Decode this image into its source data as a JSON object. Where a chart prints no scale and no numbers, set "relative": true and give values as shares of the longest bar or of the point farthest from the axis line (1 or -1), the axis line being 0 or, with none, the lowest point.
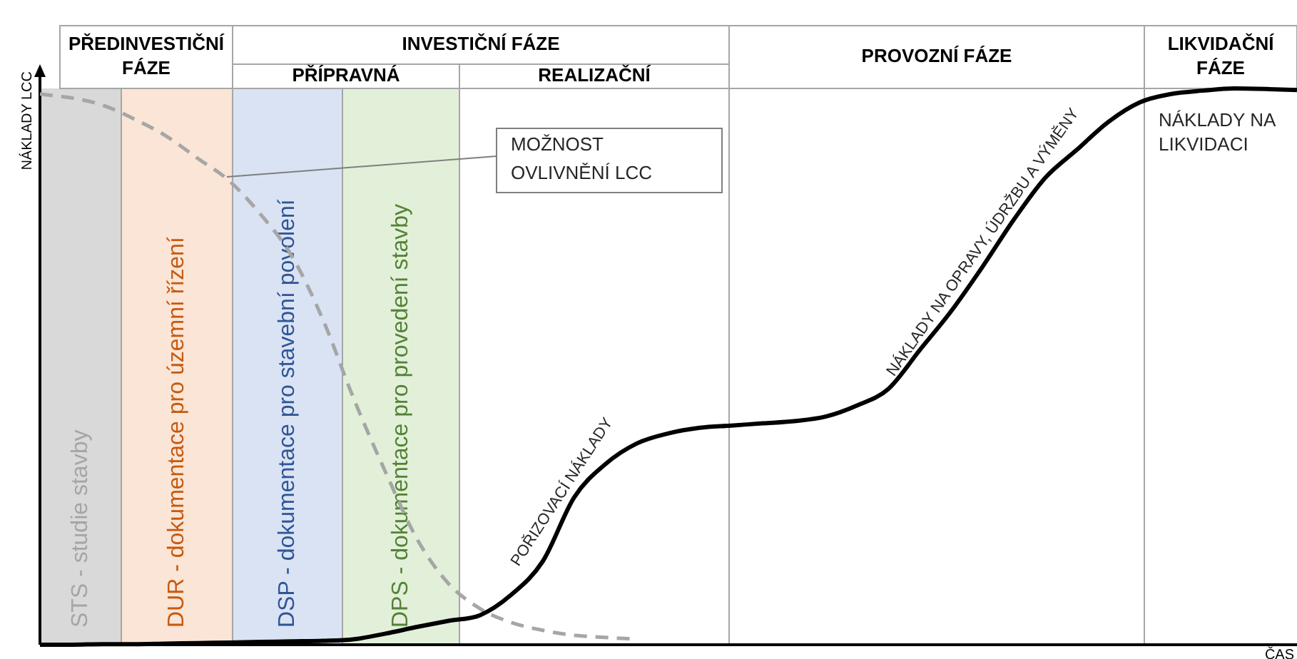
{
  "chart_data": {
    "type": "line",
    "relative": true,
    "xlabel": "ČAS",
    "ylabel": "NÁKLADY LCC",
    "tick_labels": false,
    "grid": "x",
    "categories": [
      null,
      null,
      null,
      null,
      null,
      null,
      null,
      null,
      null,
      null,
      null,
      null,
      null,
      null,
      null,
      null,
      null,
      null,
      null,
      null,
      null,
      null,
      null,
      null,
      null,
      null,
      null,
      null,
      null,
      null,
      null,
      null,
      null,
      null,
      null,
      null,
      null,
      null,
      null,
      null,
      null
    ],
    "series": [
      {
        "color": "#000000",
        "line_style": "solid",
        "values": [
          0,
          0,
          0.001,
          0.001,
          0.002,
          0.003,
          0.004,
          0.005,
          0.006,
          0.007,
          0.01,
          0.02,
          0.032,
          0.043,
          0.053,
          0.09,
          0.15,
          0.265,
          0.325,
          0.362,
          0.38,
          0.39,
          0.394,
          0.398,
          0.402,
          0.41,
          0.43,
          0.46,
          0.53,
          0.6,
          0.68,
          0.765,
          0.84,
          0.89,
          0.94,
          0.975,
          0.99,
          0.996,
          1,
          0.999,
          0.997
        ]
      },
      {
        "color": "#a6a6a6",
        "line_style": "dashed",
        "values": [
          0.99,
          0.983,
          0.97,
          0.945,
          0.915,
          0.875,
          0.835,
          0.775,
          0.7,
          0.585,
          0.44,
          0.31,
          0.19,
          0.11,
          0.065,
          0.04,
          0.026,
          0.017,
          0.013,
          0.01,
          null,
          null,
          null,
          null,
          null,
          null,
          null,
          null,
          null,
          null,
          null,
          null,
          null,
          null,
          null,
          null,
          null,
          null,
          null,
          null,
          null
        ]
      }
    ],
    "annotations": [
      "PŘEDINVESTIČNÍ FÁZE",
      "INVESTIČNÍ FÁZE",
      "PŘÍPRAVNÁ",
      "REALIZAČNÍ",
      "PROVOZNÍ FÁZE",
      "LIKVIDAČNÍ FÁZE",
      "STS - studie stavby",
      "DUR - dokumentace pro územní řízení",
      "DSP - dokumentace pro stavební povolení",
      "DPS - dokumentace pro provedení stavby",
      "MOŽNOST OVLIVNĚNÍ LCC",
      "POŘIZOVACÍ NÁKLADY",
      "NÁKLADY NA OPRAVY, ÚDRŽBU A VÝMĚNY",
      "NÁKLADY NA LIKVIDACI"
    ]
  }
}
